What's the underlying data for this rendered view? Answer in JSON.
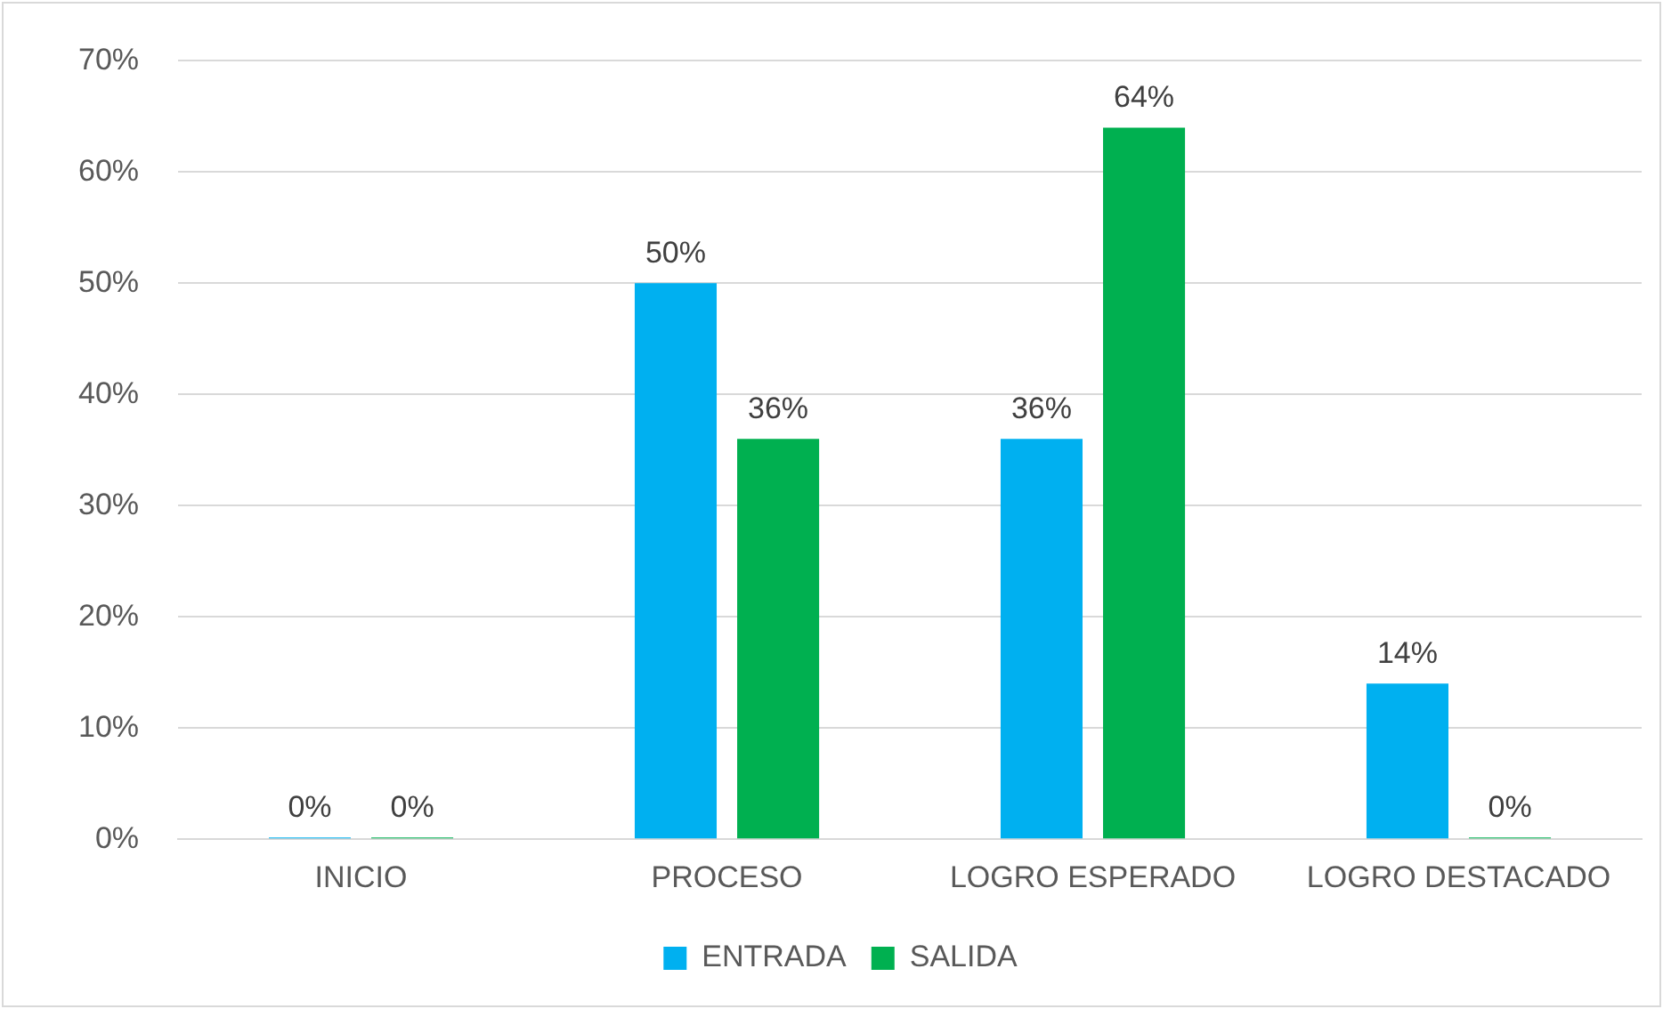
{
  "chart_data": {
    "type": "bar",
    "categories": [
      "INICIO",
      "PROCESO",
      "LOGRO ESPERADO",
      "LOGRO DESTACADO"
    ],
    "series": [
      {
        "name": "ENTRADA",
        "color": "#00b0f0",
        "values": [
          0,
          50,
          36,
          14
        ],
        "value_labels": [
          "0%",
          "50%",
          "36%",
          "14%"
        ]
      },
      {
        "name": "SALIDA",
        "color": "#00b050",
        "values": [
          0,
          36,
          64,
          0
        ],
        "value_labels": [
          "0%",
          "36%",
          "64%",
          "0%"
        ]
      }
    ],
    "ylim": [
      0,
      70
    ],
    "yticks": [
      {
        "value": 0,
        "label": "0%"
      },
      {
        "value": 10,
        "label": "10%"
      },
      {
        "value": 20,
        "label": "20%"
      },
      {
        "value": 30,
        "label": "30%"
      },
      {
        "value": 40,
        "label": "40%"
      },
      {
        "value": 50,
        "label": "50%"
      },
      {
        "value": 60,
        "label": "60%"
      },
      {
        "value": 70,
        "label": "70%"
      }
    ],
    "grid": "y",
    "legend": "bottom"
  }
}
